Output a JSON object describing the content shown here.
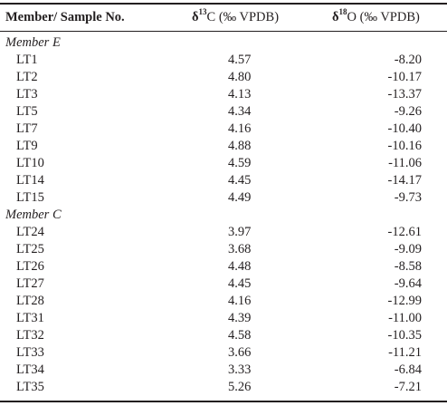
{
  "table": {
    "header": {
      "member_label": "Member/ Sample No.",
      "c13_delta": "δ",
      "c13_sup": "13",
      "c13_rest": "C (‰ VPDB)",
      "o18_delta": "δ",
      "o18_sup": "18",
      "o18_rest": "O (‰ VPDB)"
    },
    "groups": [
      {
        "name": "Member E",
        "rows": [
          {
            "sample": "LT1",
            "c13": "4.57",
            "o18": "-8.20"
          },
          {
            "sample": "LT2",
            "c13": "4.80",
            "o18": "-10.17"
          },
          {
            "sample": "LT3",
            "c13": "4.13",
            "o18": "-13.37"
          },
          {
            "sample": "LT5",
            "c13": "4.34",
            "o18": "-9.26"
          },
          {
            "sample": "LT7",
            "c13": "4.16",
            "o18": "-10.40"
          },
          {
            "sample": "LT9",
            "c13": "4.88",
            "o18": "-10.16"
          },
          {
            "sample": "LT10",
            "c13": "4.59",
            "o18": "-11.06"
          },
          {
            "sample": "LT14",
            "c13": "4.45",
            "o18": "-14.17"
          },
          {
            "sample": "LT15",
            "c13": "4.49",
            "o18": "-9.73"
          }
        ]
      },
      {
        "name": "Member C",
        "rows": [
          {
            "sample": "LT24",
            "c13": "3.97",
            "o18": "-12.61"
          },
          {
            "sample": "LT25",
            "c13": "3.68",
            "o18": "-9.09"
          },
          {
            "sample": "LT26",
            "c13": "4.48",
            "o18": "-8.58"
          },
          {
            "sample": "LT27",
            "c13": "4.45",
            "o18": "-9.64"
          },
          {
            "sample": "LT28",
            "c13": "4.16",
            "o18": "-12.99"
          },
          {
            "sample": "LT31",
            "c13": "4.39",
            "o18": "-11.00"
          },
          {
            "sample": "LT32",
            "c13": "4.58",
            "o18": "-10.35"
          },
          {
            "sample": "LT33",
            "c13": "3.66",
            "o18": "-11.21"
          },
          {
            "sample": "LT34",
            "c13": "3.33",
            "o18": "-6.84"
          },
          {
            "sample": "LT35",
            "c13": "5.26",
            "o18": "-7.21"
          }
        ]
      }
    ]
  }
}
